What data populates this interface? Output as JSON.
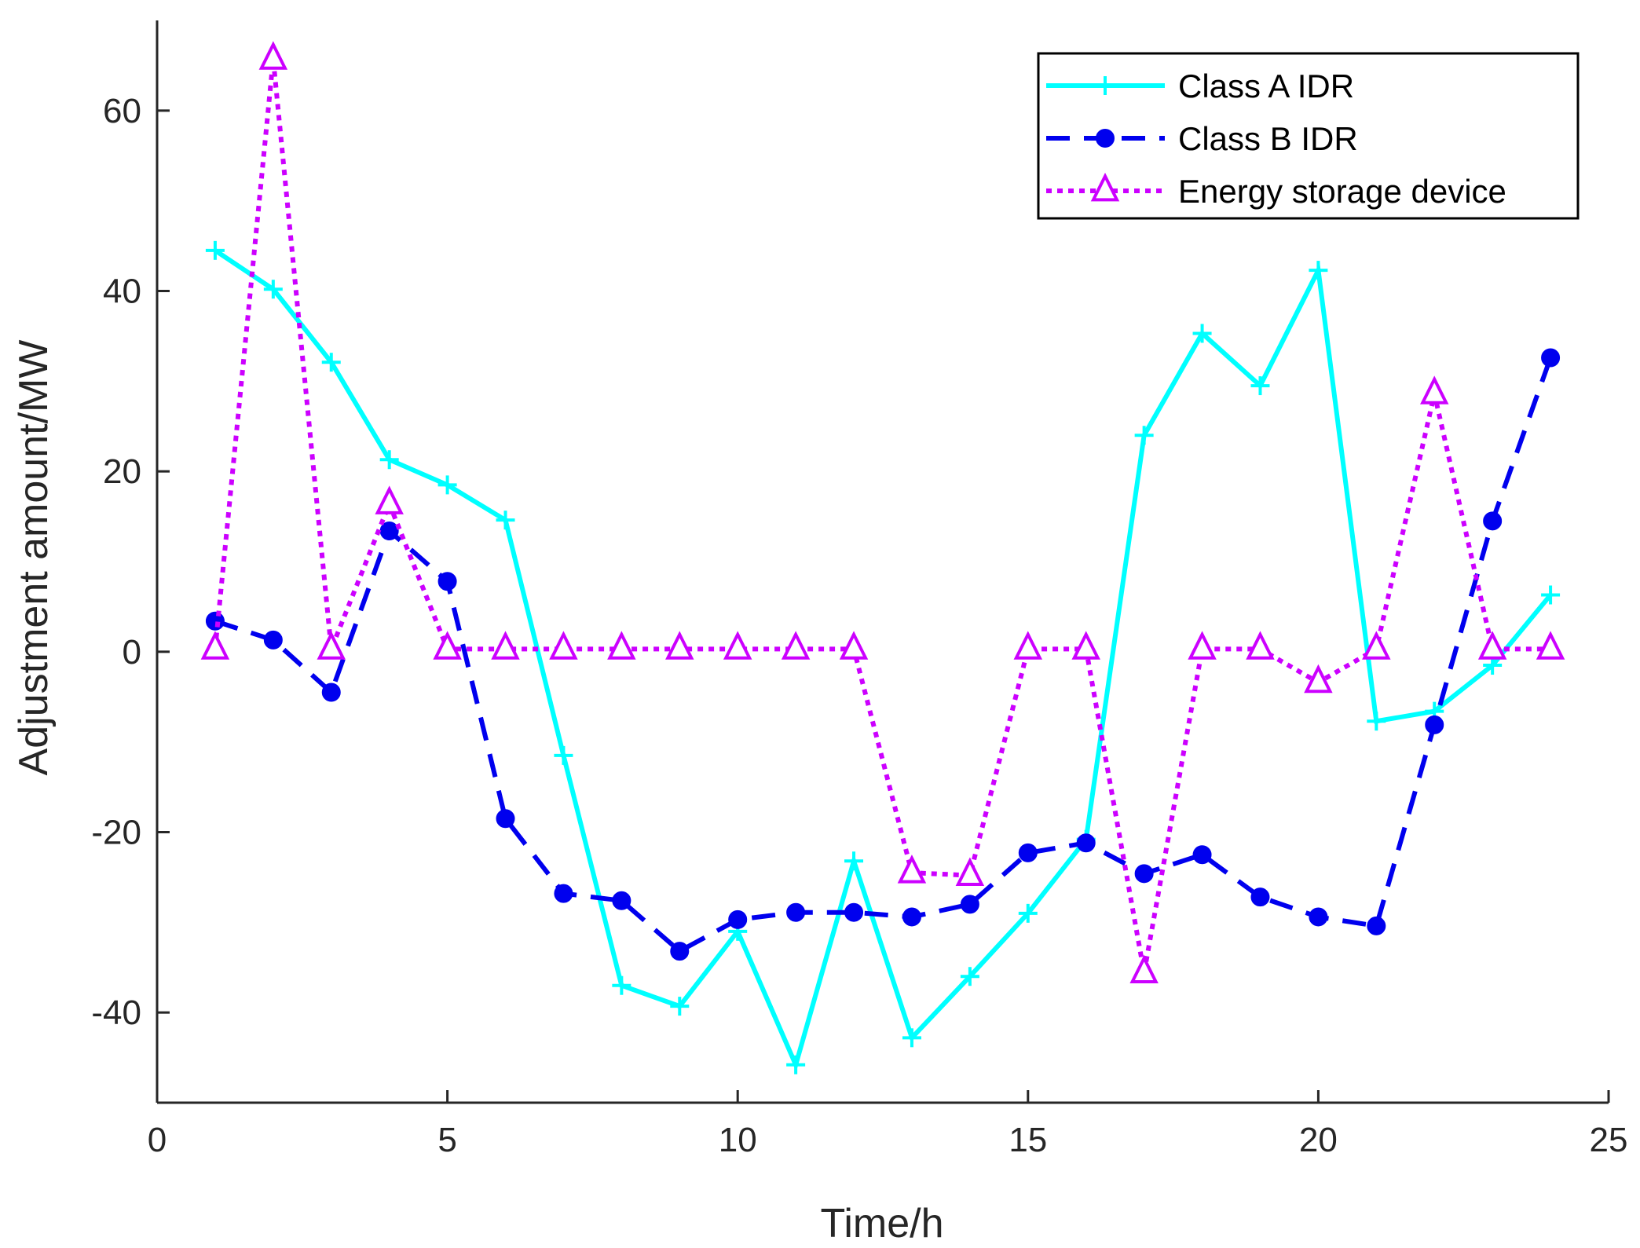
{
  "chart_data": {
    "type": "line",
    "title": "",
    "xlabel": "Time/h",
    "ylabel": "Adjustment amount/MW",
    "xlim": [
      0,
      25
    ],
    "ylim": [
      -50,
      70
    ],
    "xticks": [
      0,
      5,
      10,
      15,
      20,
      25
    ],
    "yticks": [
      -40,
      -20,
      0,
      20,
      40,
      60
    ],
    "grid": false,
    "legend_position": "top-right",
    "x": [
      1,
      2,
      3,
      4,
      5,
      6,
      7,
      8,
      9,
      10,
      11,
      12,
      13,
      14,
      15,
      16,
      17,
      18,
      19,
      20,
      21,
      22,
      23,
      24
    ],
    "series": [
      {
        "name": "Class A IDR",
        "color": "#00FFFF",
        "line_style": "solid",
        "marker": "plus",
        "values": [
          44.5,
          40.2,
          32.1,
          21.3,
          18.5,
          14.6,
          -11.5,
          -37.0,
          -39.3,
          -31.0,
          -45.8,
          -23.2,
          -42.8,
          -36.0,
          -29.0,
          -20.8,
          24.0,
          35.3,
          29.5,
          42.3,
          -7.7,
          -6.6,
          -1.5,
          6.3
        ]
      },
      {
        "name": "Class B IDR",
        "color": "#0000EE",
        "line_style": "dashed",
        "marker": "circle",
        "values": [
          3.4,
          1.3,
          -4.5,
          13.4,
          7.8,
          -18.5,
          -26.8,
          -27.6,
          -33.2,
          -29.7,
          -28.9,
          -28.9,
          -29.4,
          -28.0,
          -22.3,
          -21.2,
          -24.6,
          -22.5,
          -27.2,
          -29.4,
          -30.4,
          -8.1,
          14.5,
          32.6
        ]
      },
      {
        "name": "Energy storage device",
        "color": "#CC00FF",
        "line_style": "dotted",
        "marker": "triangle",
        "values": [
          0.3,
          65.7,
          0.3,
          16.4,
          0.3,
          0.3,
          0.3,
          0.3,
          0.3,
          0.3,
          0.3,
          0.3,
          -24.5,
          -24.8,
          0.3,
          0.3,
          -35.6,
          0.3,
          0.3,
          -3.4,
          0.3,
          28.6,
          0.3,
          0.3
        ]
      }
    ]
  }
}
